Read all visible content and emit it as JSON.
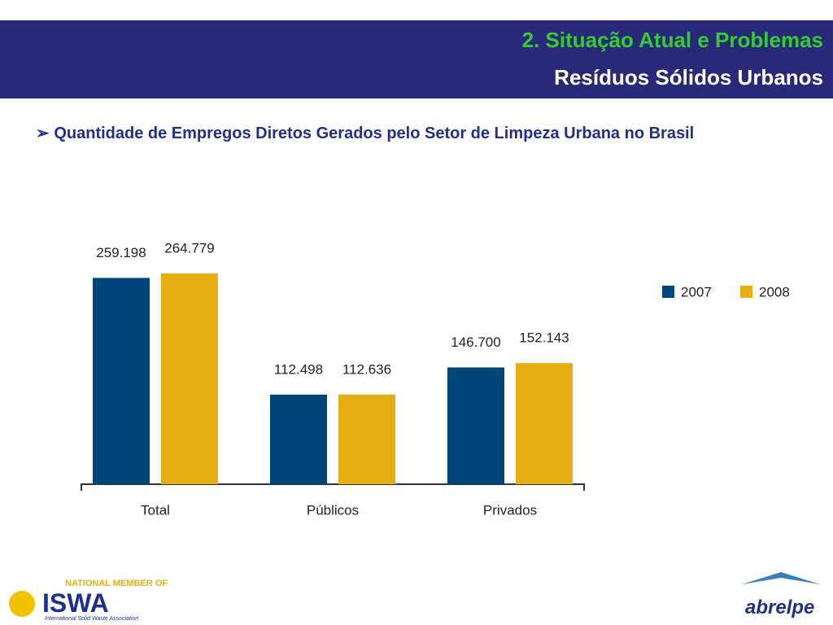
{
  "header": {
    "title": "2. Situação Atual e Problemas",
    "subtitle": "Resíduos Sólidos Urbanos"
  },
  "bullet": "Quantidade de Empregos Diretos Gerados pelo Setor de Limpeza Urbana no Brasil",
  "chart_data": {
    "type": "bar",
    "categories": [
      "Total",
      "Públicos",
      "Privados"
    ],
    "series": [
      {
        "name": "2007",
        "color": "#004679",
        "values": [
          259198,
          112498,
          146700
        ],
        "value_labels": [
          "259.198",
          "112.498",
          "146.700"
        ]
      },
      {
        "name": "2008",
        "color": "#e6ae13",
        "values": [
          264779,
          112636,
          152143
        ],
        "value_labels": [
          "264.779",
          "112.636",
          "152.143"
        ]
      }
    ],
    "legend": "right"
  },
  "footer": {
    "member": "NATIONAL MEMBER OF",
    "iswa": "ISWA",
    "iswa_full": "International Solid Waste Association",
    "abrelpe": "abrelpe"
  }
}
